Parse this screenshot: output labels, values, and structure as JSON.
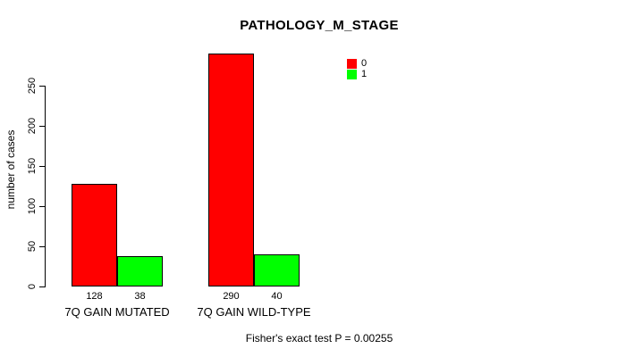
{
  "chart_data": {
    "type": "bar",
    "title": "PATHOLOGY_M_STAGE",
    "xlabel": "",
    "ylabel": "number of cases",
    "categories": [
      "7Q GAIN MUTATED",
      "7Q GAIN WILD-TYPE"
    ],
    "series": [
      {
        "name": "0",
        "color": "#ff0000",
        "values": [
          128,
          290
        ]
      },
      {
        "name": "1",
        "color": "#00ff00",
        "values": [
          38,
          40
        ]
      }
    ],
    "bar_value_labels": [
      [
        128,
        38
      ],
      [
        290,
        40
      ]
    ],
    "y_ticks": [
      0,
      50,
      100,
      150,
      200,
      250
    ],
    "ylim": [
      0,
      290
    ],
    "grid": false,
    "legend_position": "top-right",
    "bar_border_color": "#000000",
    "axis_color": "#000000",
    "background_color": "#ffffff",
    "footnote": "Fisher's exact test P = 0.00255"
  }
}
